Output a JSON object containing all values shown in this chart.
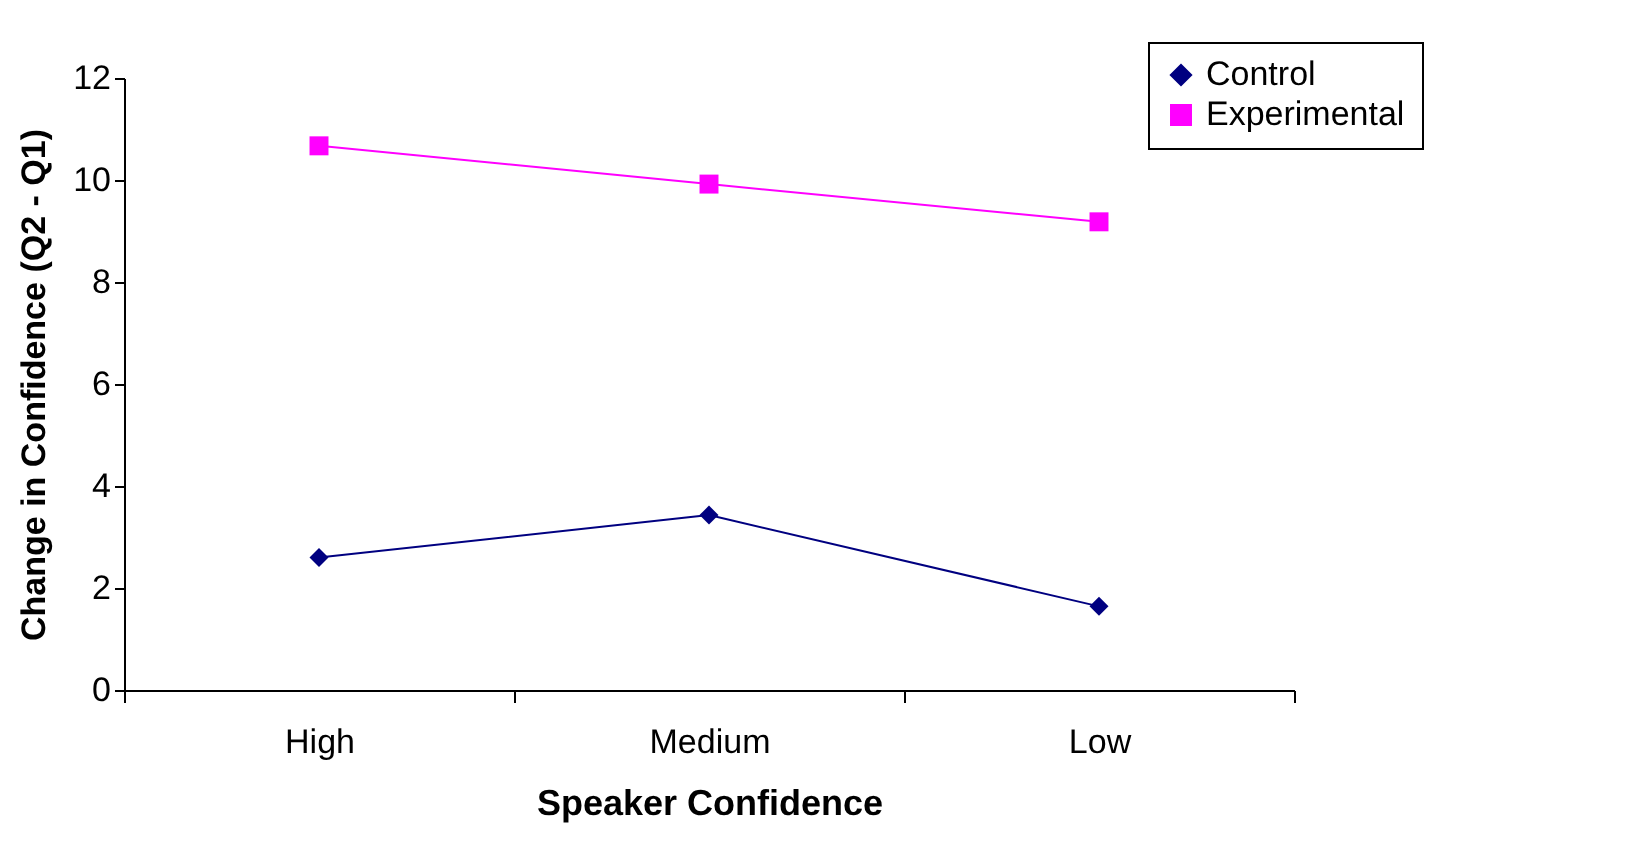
{
  "chart_data": {
    "type": "line",
    "xlabel": "Speaker Confidence",
    "ylabel": "Change in Confidence (Q2 - Q1)",
    "categories": [
      "High",
      "Medium",
      "Low"
    ],
    "series": [
      {
        "name": "Control",
        "color": "#000080",
        "marker": "diamond",
        "values": [
          2.6,
          3.43,
          1.64
        ]
      },
      {
        "name": "Experimental",
        "color": "#ff00ff",
        "marker": "square",
        "values": [
          10.67,
          9.92,
          9.18
        ]
      }
    ],
    "ylim": [
      0,
      12
    ],
    "yticks": [
      0,
      2,
      4,
      6,
      8,
      10,
      12
    ],
    "grid": false,
    "legend": "top right"
  }
}
